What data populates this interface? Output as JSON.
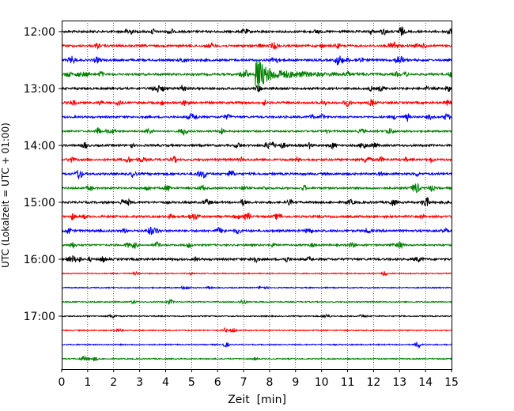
{
  "chart_data": {
    "type": "line",
    "title": "",
    "xlabel": "Zeit  [min]",
    "ylabel": "UTC (Lokalzeit = UTC + 01:00)",
    "xlim": [
      0,
      15
    ],
    "x_ticks": [
      0,
      1,
      2,
      3,
      4,
      5,
      6,
      7,
      8,
      9,
      10,
      11,
      12,
      13,
      14,
      15
    ],
    "x_tick_labels": [
      "0",
      "1",
      "2",
      "3",
      "4",
      "5",
      "6",
      "7",
      "8",
      "9",
      "10",
      "11",
      "12",
      "13",
      "14",
      "15"
    ],
    "y_tick_labels": [
      "12:00",
      "13:00",
      "14:00",
      "15:00",
      "16:00",
      "17:00"
    ],
    "grid": "vertical dotted at each minute",
    "line_colors": [
      "#000000",
      "#ff0000",
      "#0000ff",
      "#008000"
    ],
    "trace_start_times": [
      "12:00",
      "12:15",
      "12:30",
      "12:45",
      "13:00",
      "13:15",
      "13:30",
      "13:45",
      "14:00",
      "14:15",
      "14:30",
      "14:45",
      "15:00",
      "15:15",
      "15:30",
      "15:45",
      "16:00",
      "16:15",
      "16:30",
      "16:45",
      "17:00",
      "17:15",
      "17:30",
      "17:45"
    ],
    "trace_noise_level": [
      1.0,
      1.0,
      1.0,
      1.0,
      1.0,
      1.0,
      0.9,
      0.8,
      1.0,
      1.0,
      1.0,
      0.9,
      1.0,
      1.0,
      1.0,
      0.8,
      1.0,
      0.5,
      0.5,
      0.5,
      0.5,
      0.5,
      0.5,
      0.5
    ],
    "events": [
      {
        "trace_start": "12:45",
        "onset_min": 7.45,
        "peak_amplitude_traces": 1.0,
        "coda_end_min": 12.2
      }
    ]
  }
}
